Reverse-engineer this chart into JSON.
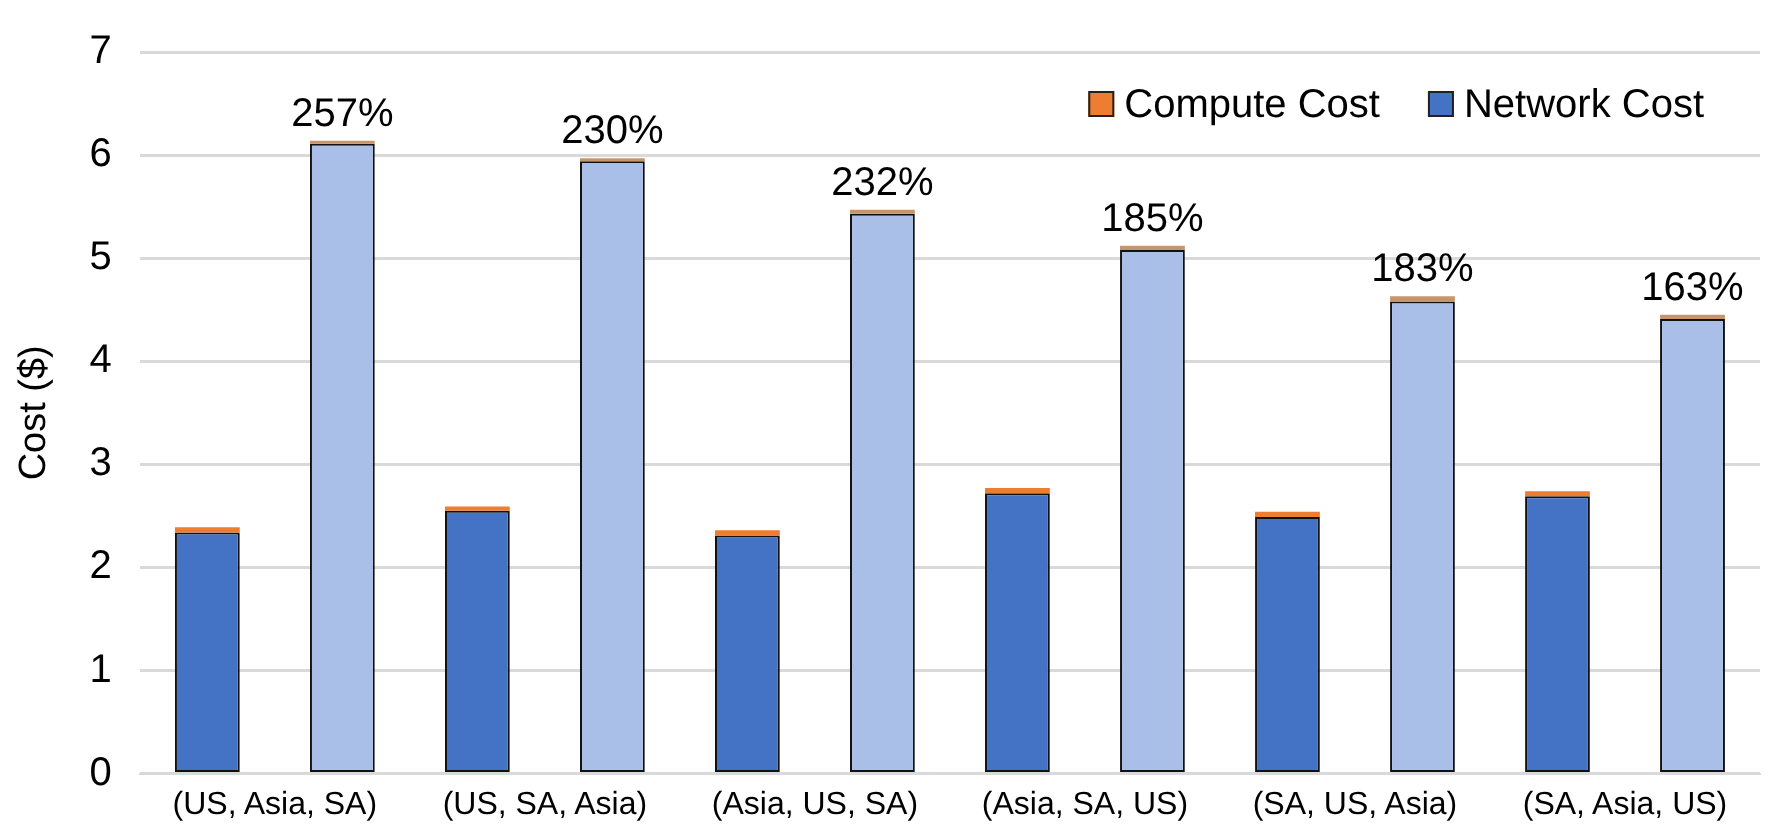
{
  "chart_data": {
    "type": "bar",
    "ylabel": "Cost ($)",
    "categories": [
      "(US, Asia, SA)",
      "(US, SA, Asia)",
      "(Asia, US, SA)",
      "(Asia, SA, US)",
      "(SA, US, Asia)",
      "(SA, Asia, US)"
    ],
    "series": [
      {
        "name": "Network Cost",
        "color": "#4472c4",
        "base": [
          0,
          0,
          0,
          0,
          0,
          0
        ],
        "values": [
          2.34,
          2.55,
          2.31,
          2.72,
          2.49,
          2.69
        ]
      },
      {
        "name": "Compute Cost",
        "color": "#ed7d31",
        "base": [
          2.34,
          2.55,
          2.31,
          2.72,
          2.49,
          2.69
        ],
        "values": [
          0.05,
          0.04,
          0.05,
          0.05,
          0.05,
          0.05
        ]
      },
      {
        "color": "#a9bfe8",
        "base": [
          0,
          0,
          0,
          0,
          0,
          0
        ],
        "values": [
          6.11,
          5.94,
          5.43,
          5.08,
          4.58,
          4.41
        ]
      },
      {
        "color": "#c8956a",
        "base": [
          6.11,
          5.94,
          5.43,
          5.08,
          4.58,
          4.41
        ],
        "values": [
          0.03,
          0.03,
          0.04,
          0.04,
          0.05,
          0.04
        ]
      }
    ],
    "ylim": [
      0,
      7
    ],
    "yticks": [
      0,
      1,
      2,
      3,
      4,
      5,
      6,
      7
    ],
    "grid": "y",
    "legend": "top right",
    "annotations": [
      "257%",
      "230%",
      "232%",
      "185%",
      "183%",
      "163%"
    ]
  }
}
